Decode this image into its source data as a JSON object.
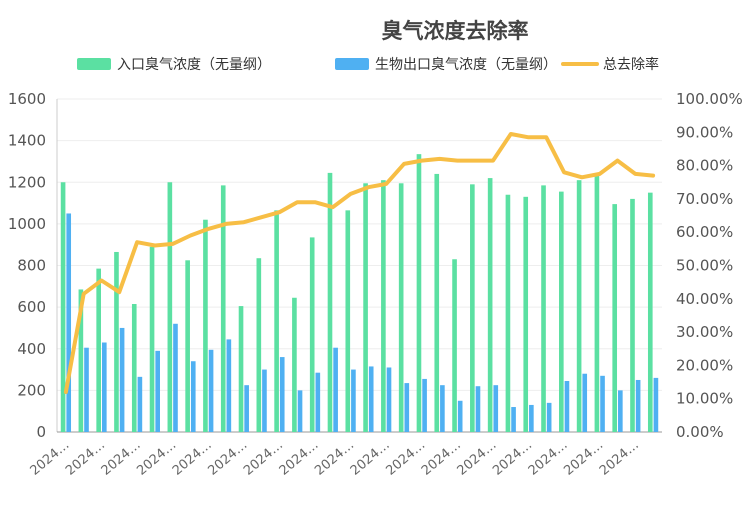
{
  "chart_data": {
    "type": "bar",
    "title": "臭气浓度去除率",
    "categories": [
      "2024…",
      "2024…",
      "2024…",
      "2024…",
      "2024…",
      "2024…",
      "2024…",
      "2024…",
      "2024…",
      "2024…",
      "2024…",
      "2024…",
      "2024…",
      "2024…",
      "2024…",
      "2024…",
      "2024…",
      "2024…",
      "2024…",
      "2024…",
      "2024…",
      "2024…",
      "2024…",
      "2024…",
      "2024…",
      "2024…",
      "2024…",
      "2024…",
      "2024…",
      "2024…",
      "2024…",
      "2024…",
      "2024…",
      "2024…"
    ],
    "x_tick_labels": [
      "2024…",
      "2024…",
      "2024…",
      "2024…",
      "2024…",
      "2024…",
      "2024…",
      "2024…",
      "2024…",
      "2024…",
      "2024…",
      "2024…",
      "2024…",
      "2024…",
      "2024…",
      "2024…",
      "2024…"
    ],
    "series": [
      {
        "name": "入口臭气浓度（无量纲）",
        "type": "bar",
        "axis": "left",
        "color": "#5be0a2",
        "values": [
          1200,
          685,
          785,
          865,
          615,
          890,
          1200,
          825,
          1020,
          1185,
          605,
          835,
          1065,
          645,
          935,
          1245,
          1065,
          1195,
          1210,
          1195,
          1335,
          1240,
          830,
          1190,
          1220,
          1140,
          1130,
          1185,
          1155,
          1210,
          1235,
          1095,
          1120,
          1150
        ]
      },
      {
        "name": "生物出口臭气浓度（无量纲）",
        "type": "bar",
        "axis": "left",
        "color": "#4fb0f2",
        "values": [
          1050,
          405,
          430,
          500,
          265,
          390,
          520,
          340,
          395,
          445,
          225,
          300,
          360,
          200,
          285,
          405,
          300,
          315,
          310,
          235,
          255,
          225,
          150,
          220,
          225,
          120,
          130,
          140,
          245,
          280,
          270,
          200,
          250,
          260
        ]
      },
      {
        "name": "总去除率",
        "type": "line",
        "axis": "right",
        "color": "#f7be45",
        "values": [
          12.0,
          41.5,
          45.5,
          42.0,
          57.0,
          56.0,
          56.5,
          59.0,
          61.0,
          62.5,
          63.0,
          64.5,
          66.0,
          69.0,
          69.0,
          67.5,
          71.5,
          73.5,
          74.5,
          80.5,
          81.5,
          82.0,
          81.5,
          81.5,
          81.5,
          89.5,
          88.5,
          88.5,
          78.0,
          76.5,
          77.5,
          81.5,
          77.5,
          77.0
        ]
      }
    ],
    "y_left": {
      "min": 0,
      "max": 1600,
      "ticks": [
        "0",
        "200",
        "400",
        "600",
        "800",
        "1000",
        "1200",
        "1400",
        "1600"
      ]
    },
    "y_right": {
      "min": 0,
      "max": 100,
      "ticks": [
        "0.00%",
        "10.00%",
        "20.00%",
        "30.00%",
        "40.00%",
        "50.00%",
        "60.00%",
        "70.00%",
        "80.00%",
        "90.00%",
        "100.00%"
      ]
    },
    "grid": true,
    "legend_position": "top"
  }
}
